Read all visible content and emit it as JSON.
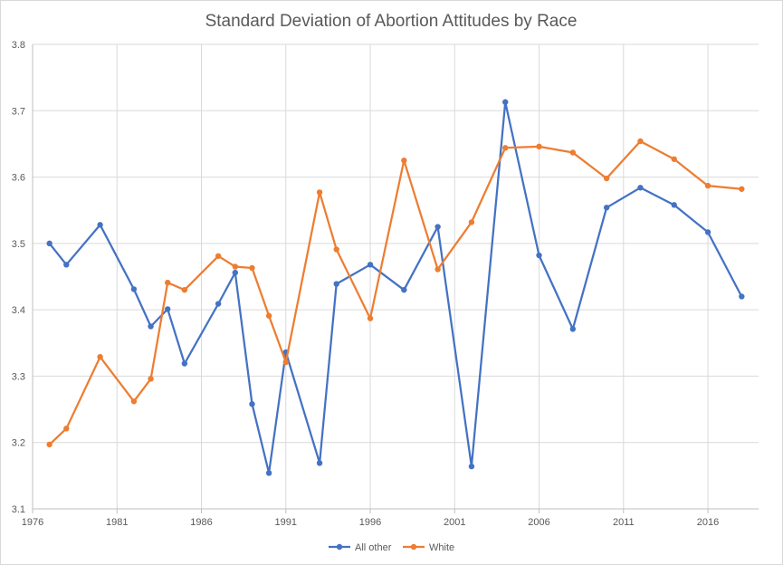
{
  "chart_data": {
    "type": "line",
    "title": "Standard Deviation of Abortion Attitudes by Race",
    "xlabel": "",
    "ylabel": "",
    "xlim": [
      1976,
      2019
    ],
    "ylim": [
      3.1,
      3.8
    ],
    "x_ticks": [
      1976,
      1981,
      1986,
      1991,
      1996,
      2001,
      2006,
      2011,
      2016
    ],
    "y_ticks": [
      "3.1",
      "3.2",
      "3.3",
      "3.4",
      "3.5",
      "3.6",
      "3.7",
      "3.8"
    ],
    "grid": true,
    "legend_position": "bottom",
    "series": [
      {
        "name": "All other",
        "color": "#4472c4",
        "points": [
          [
            1977,
            3.5
          ],
          [
            1978,
            3.468
          ],
          [
            1980,
            3.528
          ],
          [
            1982,
            3.431
          ],
          [
            1983,
            3.375
          ],
          [
            1984,
            3.401
          ],
          [
            1985,
            3.319
          ],
          [
            1987,
            3.409
          ],
          [
            1988,
            3.456
          ],
          [
            1989,
            3.258
          ],
          [
            1990,
            3.154
          ],
          [
            1991,
            3.336
          ],
          [
            1993,
            3.169
          ],
          [
            1994,
            3.439
          ],
          [
            1996,
            3.468
          ],
          [
            1998,
            3.43
          ],
          [
            2000,
            3.525
          ],
          [
            2002,
            3.164
          ],
          [
            2004,
            3.713
          ],
          [
            2006,
            3.482
          ],
          [
            2008,
            3.371
          ],
          [
            2010,
            3.554
          ],
          [
            2012,
            3.584
          ],
          [
            2014,
            3.558
          ],
          [
            2016,
            3.517
          ],
          [
            2018,
            3.42
          ]
        ]
      },
      {
        "name": "White",
        "color": "#ed7d31",
        "points": [
          [
            1977,
            3.197
          ],
          [
            1978,
            3.221
          ],
          [
            1980,
            3.329
          ],
          [
            1982,
            3.262
          ],
          [
            1983,
            3.296
          ],
          [
            1984,
            3.441
          ],
          [
            1985,
            3.43
          ],
          [
            1987,
            3.481
          ],
          [
            1988,
            3.465
          ],
          [
            1989,
            3.463
          ],
          [
            1990,
            3.391
          ],
          [
            1991,
            3.321
          ],
          [
            1993,
            3.577
          ],
          [
            1994,
            3.491
          ],
          [
            1996,
            3.387
          ],
          [
            1998,
            3.625
          ],
          [
            2000,
            3.461
          ],
          [
            2002,
            3.532
          ],
          [
            2004,
            3.644
          ],
          [
            2006,
            3.646
          ],
          [
            2008,
            3.637
          ],
          [
            2010,
            3.598
          ],
          [
            2012,
            3.654
          ],
          [
            2014,
            3.627
          ],
          [
            2016,
            3.587
          ],
          [
            2018,
            3.582
          ]
        ]
      }
    ]
  }
}
